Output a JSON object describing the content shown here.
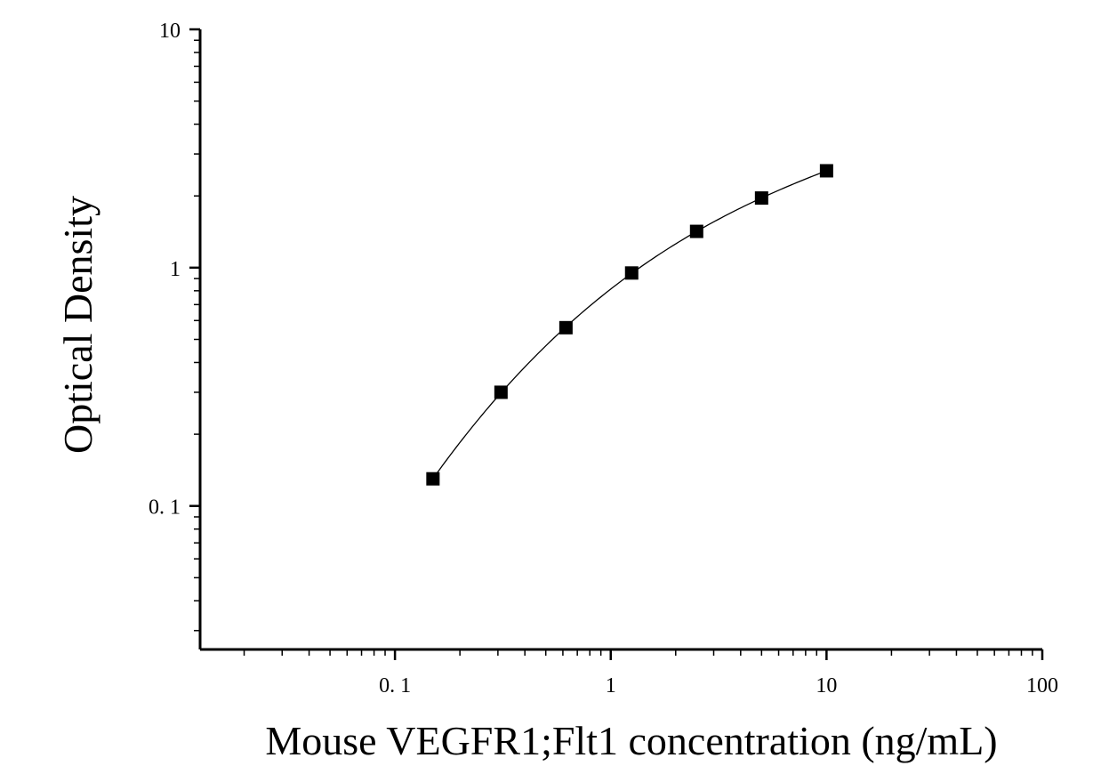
{
  "chart_data": {
    "type": "scatter",
    "title": "",
    "xlabel": "Mouse VEGFR1;Flt1 concentration (ng/mL)",
    "ylabel": "Optical Density",
    "xscale": "log",
    "yscale": "log",
    "xlim": [
      0.0125,
      100
    ],
    "ylim": [
      0.025,
      10
    ],
    "xticks": [
      {
        "value": 0.1,
        "label": "0. 1"
      },
      {
        "value": 1,
        "label": "1"
      },
      {
        "value": 10,
        "label": "10"
      },
      {
        "value": 100,
        "label": "100"
      }
    ],
    "yticks": [
      {
        "value": 0.1,
        "label": "0. 1"
      },
      {
        "value": 1,
        "label": "1"
      },
      {
        "value": 10,
        "label": "10"
      }
    ],
    "grid": false,
    "legend": "none",
    "marker": "square",
    "fit": "smooth curve through points",
    "colors": {
      "marker": "#000000",
      "line": "#000000",
      "axis": "#000000"
    },
    "series": [
      {
        "x": [
          0.15,
          0.31,
          0.62,
          1.25,
          2.5,
          5,
          10
        ],
        "y": [
          0.13,
          0.3,
          0.56,
          0.95,
          1.42,
          1.96,
          2.55
        ]
      }
    ]
  }
}
